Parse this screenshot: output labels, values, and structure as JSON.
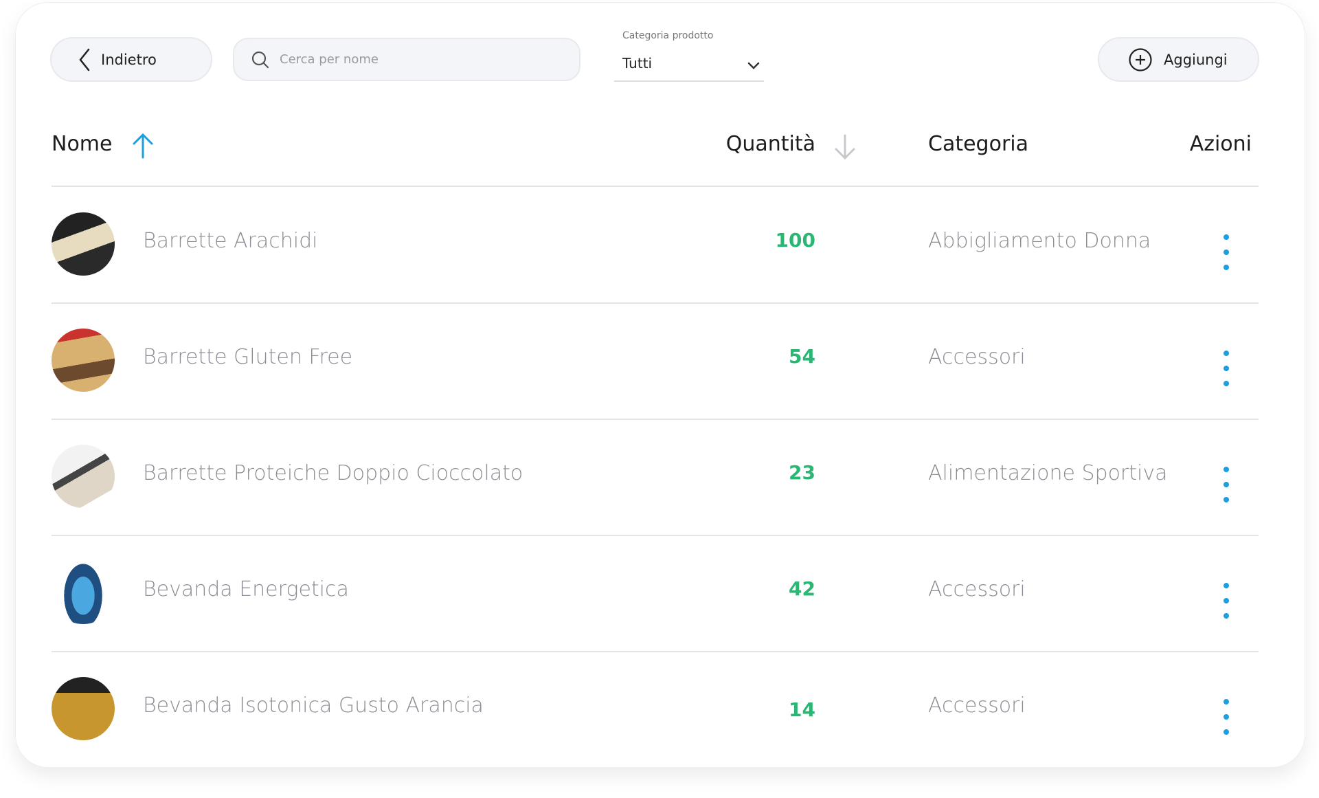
{
  "toolbar": {
    "back_label": "Indietro",
    "search_placeholder": "Cerca per nome",
    "category_label": "Categoria prodotto",
    "category_value": "Tutti",
    "add_label": "Aggiungi"
  },
  "table": {
    "headers": {
      "name": "Nome",
      "quantity": "Quantità",
      "category": "Categoria",
      "actions": "Azioni"
    },
    "sort": {
      "name": "ascending-active",
      "quantity": "descending-inactive"
    },
    "rows": [
      {
        "name": "Barrette Arachidi",
        "quantity": "100",
        "category": "Abbigliamento Donna"
      },
      {
        "name": "Barrette Gluten Free",
        "quantity": "54",
        "category": "Accessori"
      },
      {
        "name": "Barrette Proteiche Doppio Cioccolato",
        "quantity": "23",
        "category": "Alimentazione Sportiva"
      },
      {
        "name": "Bevanda Energetica",
        "quantity": "42",
        "category": "Accessori"
      },
      {
        "name": "Bevanda Isotonica Gusto Arancia",
        "quantity": "14",
        "category": "Accessori"
      }
    ]
  },
  "colors": {
    "accent": "#1a9fe0",
    "quantity": "#2ab673",
    "text_muted": "#8c8c94"
  }
}
